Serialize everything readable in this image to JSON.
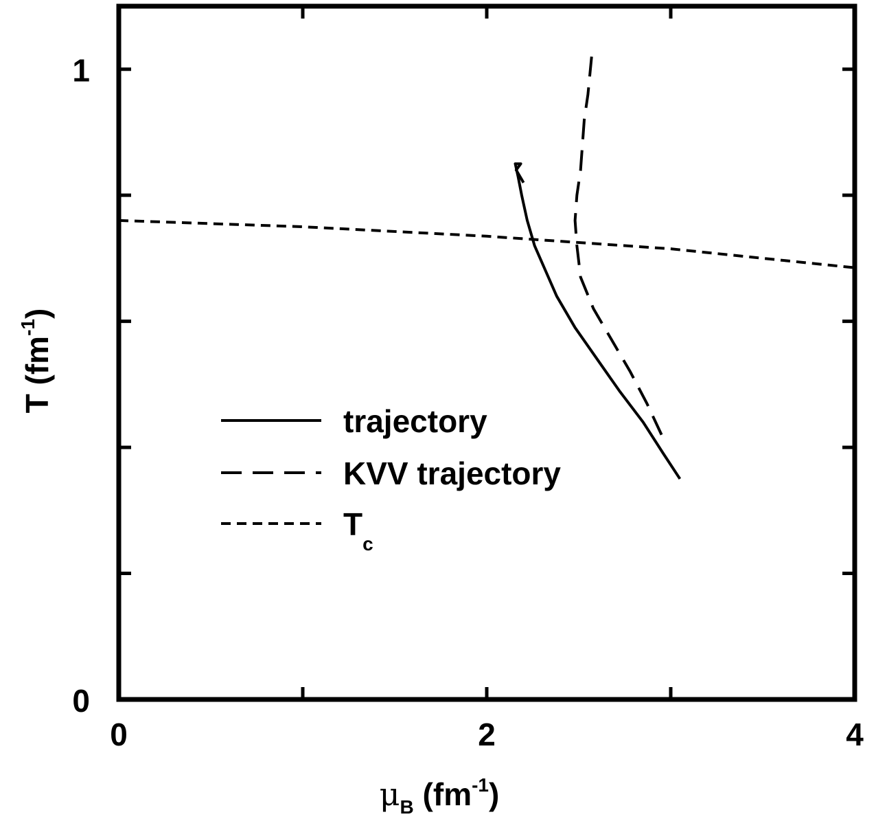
{
  "chart_data": {
    "type": "line",
    "title": "",
    "xlabel": "μ",
    "xlabel_sub": "B",
    "xlabel_unit_pre": " (fm",
    "xlabel_unit_sup": "-1",
    "xlabel_unit_post": ")",
    "ylabel": "T (fm",
    "ylabel_sup": "-1",
    "ylabel_post": ")",
    "xlim": [
      0,
      4
    ],
    "ylim": [
      0,
      1.1
    ],
    "x_tick_labels": [
      {
        "value": 0,
        "label": "0"
      },
      {
        "value": 2,
        "label": "2"
      },
      {
        "value": 4,
        "label": "4"
      }
    ],
    "x_minor_ticks": [
      1,
      3
    ],
    "y_tick_labels": [
      {
        "value": 0,
        "label": "0"
      },
      {
        "value": 1,
        "label": "1"
      }
    ],
    "y_minor_ticks": [
      0.2,
      0.4,
      0.6,
      0.8
    ],
    "grid": false,
    "legend_position": "center-left",
    "series": [
      {
        "name": "trajectory",
        "style": "solid",
        "x": [
          3.05,
          2.96,
          2.85,
          2.72,
          2.6,
          2.48,
          2.38,
          2.32,
          2.26,
          2.22,
          2.19,
          2.17,
          2.155,
          2.185,
          2.16,
          2.2
        ],
        "y": [
          0.35,
          0.39,
          0.44,
          0.49,
          0.54,
          0.59,
          0.64,
          0.68,
          0.72,
          0.76,
          0.8,
          0.83,
          0.85,
          0.85,
          0.84,
          0.82
        ]
      },
      {
        "name": "KVV trajectory",
        "style": "long-dash",
        "x": [
          2.95,
          2.87,
          2.78,
          2.68,
          2.58,
          2.51,
          2.49,
          2.48,
          2.49,
          2.51,
          2.52,
          2.53,
          2.55,
          2.57
        ],
        "y": [
          0.42,
          0.47,
          0.52,
          0.57,
          0.62,
          0.67,
          0.72,
          0.76,
          0.8,
          0.84,
          0.88,
          0.92,
          0.96,
          1.02
        ]
      },
      {
        "name": "T",
        "name_sub": "c",
        "style": "short-dash",
        "x": [
          0,
          1,
          2,
          3,
          4
        ],
        "y": [
          0.76,
          0.75,
          0.735,
          0.715,
          0.685
        ]
      }
    ]
  }
}
